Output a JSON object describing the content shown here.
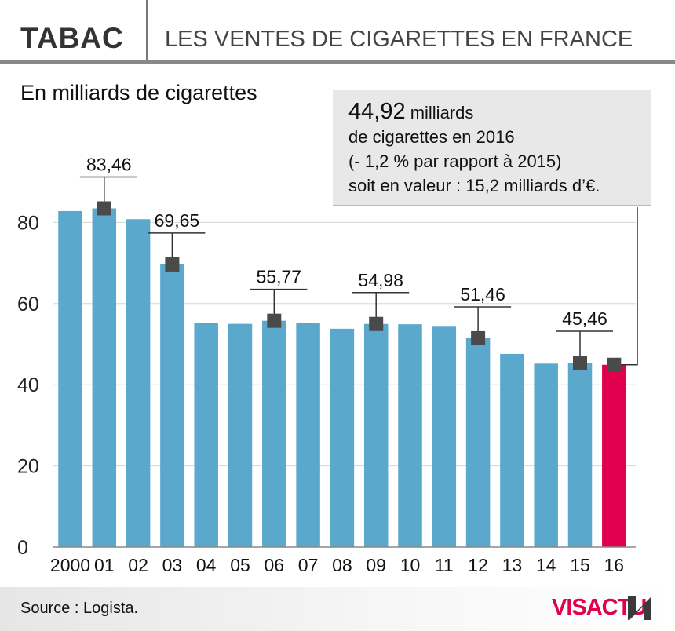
{
  "header": {
    "title": "TABAC",
    "subtitle": "LES VENTES DE CIGARETTES EN FRANCE"
  },
  "unit_label": "En milliards de cigarettes",
  "callout": {
    "value": "44,92",
    "line1_rest": " milliards",
    "line2": "de cigarettes en 2016",
    "line3": "(- 1,2 % par rapport à 2015)",
    "line4": "soit en valeur : 15,2 milliards d’€."
  },
  "footer": {
    "source": "Source : Logista.",
    "logo": "VISACTU"
  },
  "colors": {
    "bar": "#5aa8cc",
    "highlight": "#e2004e",
    "marker": "#4a4a4a"
  },
  "chart_data": {
    "type": "bar",
    "categories": [
      "2000",
      "01",
      "02",
      "03",
      "04",
      "05",
      "06",
      "07",
      "08",
      "09",
      "10",
      "11",
      "12",
      "13",
      "14",
      "15",
      "16"
    ],
    "values": [
      82.8,
      83.46,
      80.8,
      69.65,
      55.2,
      55.0,
      55.77,
      55.2,
      53.8,
      54.98,
      54.9,
      54.3,
      51.46,
      47.6,
      45.2,
      45.46,
      44.92
    ],
    "highlight_index": 16,
    "annotated": [
      {
        "index": 1,
        "label": "83,46"
      },
      {
        "index": 3,
        "label": "69,65"
      },
      {
        "index": 6,
        "label": "55,77"
      },
      {
        "index": 9,
        "label": "54,98"
      },
      {
        "index": 12,
        "label": "51,46"
      },
      {
        "index": 15,
        "label": "45,46"
      }
    ],
    "yticks": [
      0,
      20,
      40,
      60,
      80
    ],
    "ylim": [
      0,
      100
    ],
    "grid": true
  }
}
